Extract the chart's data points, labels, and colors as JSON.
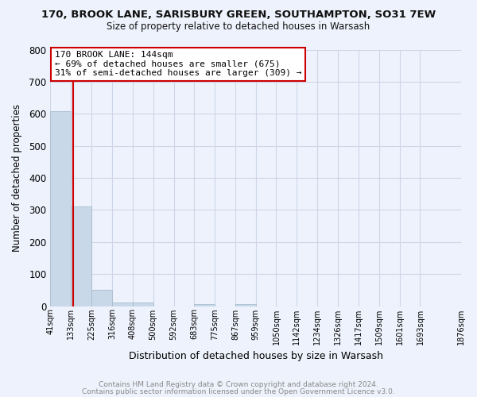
{
  "title1": "170, BROOK LANE, SARISBURY GREEN, SOUTHAMPTON, SO31 7EW",
  "title2": "Size of property relative to detached houses in Warsash",
  "xlabel": "Distribution of detached houses by size in Warsash",
  "ylabel": "Number of detached properties",
  "bar_values": [
    607,
    311,
    50,
    11,
    12,
    0,
    0,
    5,
    0,
    7,
    0,
    0,
    0,
    0,
    0,
    0,
    0,
    0,
    0
  ],
  "bin_edges": [
    41,
    133,
    225,
    316,
    408,
    500,
    592,
    683,
    775,
    867,
    959,
    1050,
    1142,
    1234,
    1326,
    1417,
    1509,
    1601,
    1693,
    1876
  ],
  "tick_labels": [
    "41sqm",
    "133sqm",
    "225sqm",
    "316sqm",
    "408sqm",
    "500sqm",
    "592sqm",
    "683sqm",
    "775sqm",
    "867sqm",
    "959sqm",
    "1050sqm",
    "1142sqm",
    "1234sqm",
    "1326sqm",
    "1417sqm",
    "1509sqm",
    "1601sqm",
    "1693sqm",
    "1876sqm"
  ],
  "ylim": [
    0,
    800
  ],
  "yticks": [
    0,
    100,
    200,
    300,
    400,
    500,
    600,
    700,
    800
  ],
  "bar_color": "#c8d8e8",
  "bar_edge_color": "#a8bece",
  "grid_color": "#ccd6e8",
  "background_color": "#eef2fc",
  "plot_bg_color": "#eef2fc",
  "vline_x": 144,
  "vline_color": "#cc0000",
  "annotation_title": "170 BROOK LANE: 144sqm",
  "annotation_line1": "← 69% of detached houses are smaller (675)",
  "annotation_line2": "31% of semi-detached houses are larger (309) →",
  "annotation_box_facecolor": "#ffffff",
  "annotation_box_edgecolor": "#cc0000",
  "footer1": "Contains HM Land Registry data © Crown copyright and database right 2024.",
  "footer2": "Contains public sector information licensed under the Open Government Licence v3.0.",
  "title1_fontsize": 9.5,
  "title2_fontsize": 8.5,
  "footer_color": "#888888"
}
